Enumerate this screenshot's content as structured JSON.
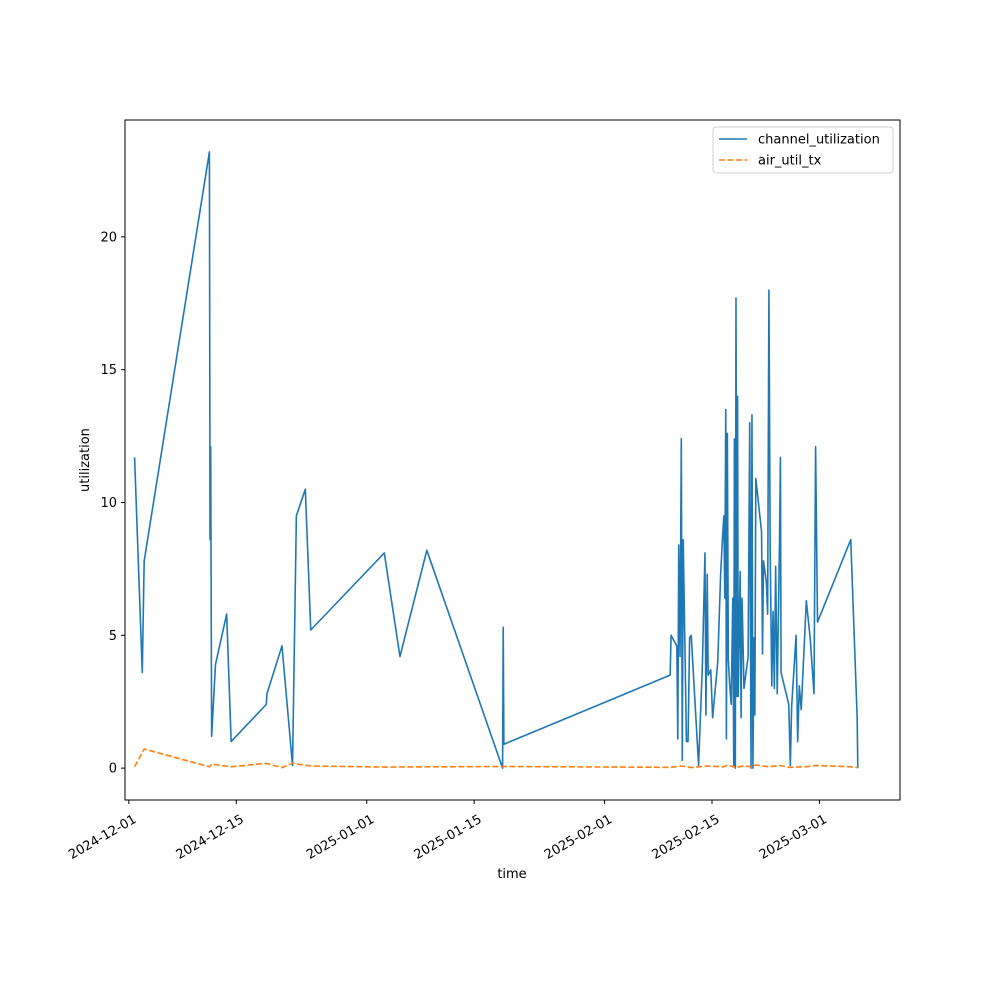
{
  "chart_data": {
    "type": "line",
    "title": "",
    "xlabel": "time",
    "ylabel": "utilization",
    "x_type": "date",
    "xlim": [
      "2024-11-30T12:00",
      "2025-03-11T12:00"
    ],
    "ylim": [
      -1.2,
      24.4
    ],
    "xticks": [
      "2024-12-01",
      "2024-12-15",
      "2025-01-01",
      "2025-01-15",
      "2025-02-01",
      "2025-02-15",
      "2025-03-01"
    ],
    "yticks": [
      0,
      5,
      10,
      15,
      20
    ],
    "grid": false,
    "legend": "top-right",
    "series": [
      {
        "name": "channel_utilization",
        "color": "#1f77b4",
        "style": "solid",
        "points": [
          [
            "2024-12-01T18:00",
            11.7
          ],
          [
            "2024-12-02T18:00",
            3.6
          ],
          [
            "2024-12-03T00:00",
            7.8
          ],
          [
            "2024-12-11T12:00",
            23.2
          ],
          [
            "2024-12-11T14:00",
            8.6
          ],
          [
            "2024-12-11T16:00",
            12.1
          ],
          [
            "2024-12-11T19:00",
            1.2
          ],
          [
            "2024-12-12T07:00",
            3.9
          ],
          [
            "2024-12-13T18:00",
            5.8
          ],
          [
            "2024-12-14T08:00",
            1.0
          ],
          [
            "2024-12-18T22:00",
            2.4
          ],
          [
            "2024-12-19T00:00",
            2.8
          ],
          [
            "2024-12-20T23:00",
            4.6
          ],
          [
            "2024-12-22T08:00",
            0.1
          ],
          [
            "2024-12-22T20:00",
            9.5
          ],
          [
            "2024-12-24T00:00",
            10.5
          ],
          [
            "2024-12-24T17:00",
            5.2
          ],
          [
            "2025-01-03T07:00",
            8.1
          ],
          [
            "2025-01-05T08:00",
            4.2
          ],
          [
            "2025-01-08T20:00",
            8.2
          ],
          [
            "2025-01-18T17:00",
            0.0
          ],
          [
            "2025-01-18T19:00",
            5.3
          ],
          [
            "2025-01-18T21:00",
            0.9
          ],
          [
            "2025-02-09T13:00",
            3.5
          ],
          [
            "2025-02-09T16:00",
            5.0
          ],
          [
            "2025-02-10T10:00",
            4.6
          ],
          [
            "2025-02-10T13:00",
            1.1
          ],
          [
            "2025-02-10T16:00",
            8.4
          ],
          [
            "2025-02-10T20:00",
            4.2
          ],
          [
            "2025-02-11T00:00",
            12.4
          ],
          [
            "2025-02-11T03:00",
            0.3
          ],
          [
            "2025-02-11T06:00",
            8.6
          ],
          [
            "2025-02-11T16:00",
            1.0
          ],
          [
            "2025-02-11T21:00",
            1.0
          ],
          [
            "2025-02-12T02:00",
            4.9
          ],
          [
            "2025-02-12T07:00",
            5.0
          ],
          [
            "2025-02-13T06:00",
            0.1
          ],
          [
            "2025-02-13T18:00",
            3.9
          ],
          [
            "2025-02-14T02:00",
            8.1
          ],
          [
            "2025-02-14T05:00",
            2.0
          ],
          [
            "2025-02-14T09:00",
            7.3
          ],
          [
            "2025-02-14T12:00",
            3.5
          ],
          [
            "2025-02-14T20:00",
            3.7
          ],
          [
            "2025-02-15T02:00",
            1.9
          ],
          [
            "2025-02-15T18:00",
            4.0
          ],
          [
            "2025-02-16T03:00",
            7.3
          ],
          [
            "2025-02-16T08:00",
            8.5
          ],
          [
            "2025-02-16T13:00",
            9.5
          ],
          [
            "2025-02-16T16:00",
            6.4
          ],
          [
            "2025-02-16T19:00",
            13.5
          ],
          [
            "2025-02-16T21:00",
            1.1
          ],
          [
            "2025-02-17T00:00",
            12.6
          ],
          [
            "2025-02-17T03:00",
            4.1
          ],
          [
            "2025-02-17T07:00",
            3.2
          ],
          [
            "2025-02-17T12:00",
            2.4
          ],
          [
            "2025-02-17T17:00",
            6.4
          ],
          [
            "2025-02-17T20:00",
            0.1
          ],
          [
            "2025-02-17T22:00",
            12.4
          ],
          [
            "2025-02-18T01:00",
            0.0
          ],
          [
            "2025-02-18T03:00",
            17.7
          ],
          [
            "2025-02-18T06:00",
            2.7
          ],
          [
            "2025-02-18T08:00",
            14.0
          ],
          [
            "2025-02-18T10:00",
            2.7
          ],
          [
            "2025-02-18T16:00",
            7.4
          ],
          [
            "2025-02-18T19:00",
            1.9
          ],
          [
            "2025-02-18T22:00",
            6.4
          ],
          [
            "2025-02-19T04:00",
            3.0
          ],
          [
            "2025-02-19T17:00",
            4.2
          ],
          [
            "2025-02-19T22:00",
            13.0
          ],
          [
            "2025-02-20T02:00",
            0.0
          ],
          [
            "2025-02-20T05:00",
            13.3
          ],
          [
            "2025-02-20T08:00",
            0.0
          ],
          [
            "2025-02-20T11:00",
            4.9
          ],
          [
            "2025-02-20T14:00",
            2.0
          ],
          [
            "2025-02-20T17:00",
            10.9
          ],
          [
            "2025-02-21T11:00",
            8.9
          ],
          [
            "2025-02-21T14:00",
            4.3
          ],
          [
            "2025-02-21T17:00",
            7.8
          ],
          [
            "2025-02-22T02:00",
            7.0
          ],
          [
            "2025-02-22T06:00",
            5.8
          ],
          [
            "2025-02-22T10:00",
            18.0
          ],
          [
            "2025-02-22T14:00",
            8.1
          ],
          [
            "2025-02-22T19:00",
            3.1
          ],
          [
            "2025-02-22T23:00",
            5.9
          ],
          [
            "2025-02-23T03:00",
            3.0
          ],
          [
            "2025-02-23T07:00",
            7.6
          ],
          [
            "2025-02-23T12:00",
            2.8
          ],
          [
            "2025-02-23T19:00",
            8.4
          ],
          [
            "2025-02-23T22:00",
            11.7
          ],
          [
            "2025-02-24T00:00",
            3.6
          ],
          [
            "2025-02-25T00:00",
            2.4
          ],
          [
            "2025-02-25T05:00",
            0.1
          ],
          [
            "2025-02-25T09:00",
            2.3
          ],
          [
            "2025-02-25T23:00",
            5.0
          ],
          [
            "2025-02-26T04:00",
            1.0
          ],
          [
            "2025-02-26T09:00",
            3.1
          ],
          [
            "2025-02-26T15:00",
            2.2
          ],
          [
            "2025-02-27T07:00",
            6.3
          ],
          [
            "2025-02-27T19:00",
            4.9
          ],
          [
            "2025-02-28T07:00",
            2.8
          ],
          [
            "2025-02-28T12:00",
            12.1
          ],
          [
            "2025-02-28T18:00",
            5.5
          ],
          [
            "2025-03-05T02:00",
            8.6
          ],
          [
            "2025-03-05T22:00",
            1.9
          ],
          [
            "2025-03-06T00:00",
            0.0
          ]
        ]
      },
      {
        "name": "air_util_tx",
        "color": "#ff7f0e",
        "style": "dashed",
        "points": [
          [
            "2024-12-01T18:00",
            0.05
          ],
          [
            "2024-12-03T00:00",
            0.72
          ],
          [
            "2024-12-11T12:00",
            0.05
          ],
          [
            "2024-12-11T19:00",
            0.15
          ],
          [
            "2024-12-14T08:00",
            0.05
          ],
          [
            "2024-12-18T22:00",
            0.18
          ],
          [
            "2024-12-20T23:00",
            0.02
          ],
          [
            "2024-12-22T08:00",
            0.18
          ],
          [
            "2024-12-24T17:00",
            0.08
          ],
          [
            "2025-01-03T07:00",
            0.04
          ],
          [
            "2025-01-18T21:00",
            0.06
          ],
          [
            "2025-02-09T16:00",
            0.03
          ],
          [
            "2025-02-11T00:00",
            0.08
          ],
          [
            "2025-02-12T07:00",
            0.02
          ],
          [
            "2025-02-14T09:00",
            0.08
          ],
          [
            "2025-02-16T13:00",
            0.05
          ],
          [
            "2025-02-17T00:00",
            0.12
          ],
          [
            "2025-02-18T03:00",
            0.02
          ],
          [
            "2025-02-19T04:00",
            0.09
          ],
          [
            "2025-02-20T05:00",
            0.04
          ],
          [
            "2025-02-20T17:00",
            0.12
          ],
          [
            "2025-02-22T10:00",
            0.05
          ],
          [
            "2025-02-23T22:00",
            0.1
          ],
          [
            "2025-02-25T00:00",
            0.03
          ],
          [
            "2025-02-27T07:00",
            0.05
          ],
          [
            "2025-02-28T12:00",
            0.1
          ],
          [
            "2025-03-05T02:00",
            0.05
          ],
          [
            "2025-03-06T00:00",
            0.02
          ]
        ]
      }
    ]
  }
}
